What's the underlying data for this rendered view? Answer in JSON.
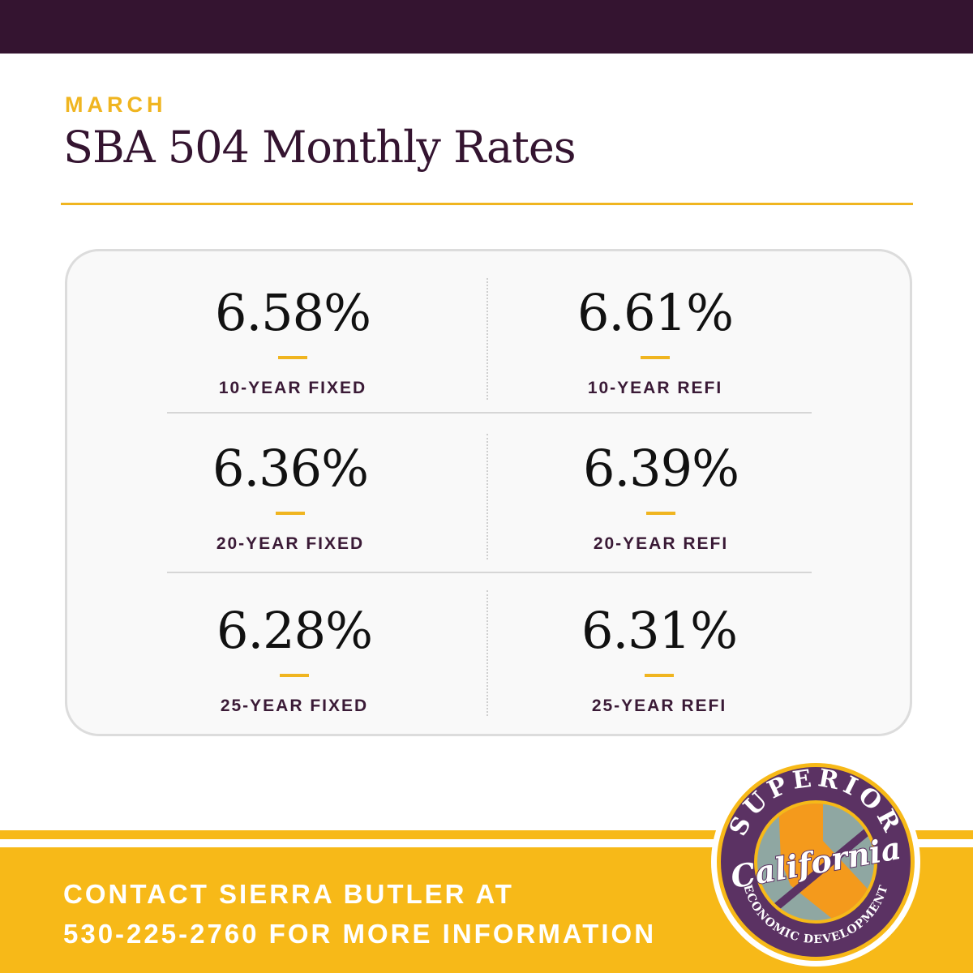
{
  "header": {
    "eyebrow": "MARCH",
    "title": "SBA 504 Monthly Rates"
  },
  "rates": [
    {
      "value": "6.58%",
      "label": "10-YEAR FIXED"
    },
    {
      "value": "6.61%",
      "label": "10-YEAR REFI"
    },
    {
      "value": "6.36%",
      "label": "20-YEAR FIXED"
    },
    {
      "value": "6.39%",
      "label": "20-YEAR REFI"
    },
    {
      "value": "6.28%",
      "label": "25-YEAR FIXED"
    },
    {
      "value": "6.31%",
      "label": "25-YEAR REFI"
    }
  ],
  "footer": {
    "contact_line_1": "CONTACT SIERRA BUTLER AT",
    "contact_line_2": "530-225-2760 FOR MORE INFORMATION"
  },
  "logo": {
    "top_text": "SUPERIOR",
    "script_text": "California",
    "bottom_text": "ECONOMIC DEVELOPMENT"
  },
  "colors": {
    "plum": "#341430",
    "gold": "#f0b520",
    "band_yellow": "#f7b918",
    "orange": "#f49a1c",
    "card_bg": "#f9f9f9"
  }
}
